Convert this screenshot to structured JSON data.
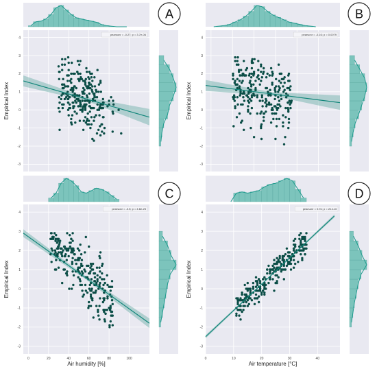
{
  "colors": {
    "panel_bg": "#e9e9f1",
    "grid": "#ffffff",
    "scatter": "#0b4d46",
    "line": "#11867a",
    "ci_band": "#7fb8b2",
    "hist_bar": "#7cc4bc",
    "hist_edge": "#5aa9a1",
    "kde": "#1d9a8d"
  },
  "chart_data": [
    {
      "type": "scatter",
      "panel_label": "A",
      "annotation": "pearsonr = -0.27; p = 3.7e-06",
      "xlabel": "",
      "ylabel": "Empirical Index",
      "xlim": [
        -5,
        120
      ],
      "ylim": [
        -3.4,
        4.4
      ],
      "yticks": [
        -3,
        -2,
        -1,
        0,
        1,
        2,
        3,
        4
      ],
      "xticks": [],
      "regression": {
        "x": [
          -5,
          120
        ],
        "y": [
          1.6,
          -0.4
        ]
      },
      "ci_halfwidth": [
        0.3,
        0.1,
        0.45
      ],
      "top_hist": {
        "bins": [
          0,
          5,
          10,
          15,
          20,
          25,
          30,
          35,
          40,
          45,
          50,
          55,
          60,
          65,
          70,
          75,
          80,
          85,
          90,
          95,
          100
        ],
        "counts": [
          2,
          9,
          10,
          14,
          22,
          34,
          38,
          30,
          22,
          16,
          14,
          12,
          10,
          8,
          4,
          2,
          1,
          0,
          0,
          0
        ]
      },
      "right_hist": {
        "bins": [
          -2,
          -1.5,
          -1,
          -0.5,
          0,
          0.5,
          1,
          1.5,
          2,
          2.5,
          3
        ],
        "counts": [
          4,
          6,
          10,
          18,
          22,
          30,
          36,
          30,
          22,
          10
        ]
      }
    },
    {
      "type": "scatter",
      "panel_label": "B",
      "annotation": "pearsonr = -0.16; p = 0.0079",
      "xlabel": "",
      "ylabel": "Empirical Index",
      "xlim": [
        -5,
        120
      ],
      "ylim": [
        -3.4,
        4.4
      ],
      "yticks": [
        -3,
        -2,
        -1,
        0,
        1,
        2,
        3,
        4
      ],
      "xticks": [],
      "regression": {
        "x": [
          -5,
          120
        ],
        "y": [
          1.35,
          0.4
        ]
      },
      "ci_halfwidth": [
        0.3,
        0.1,
        0.4
      ],
      "top_hist": {
        "bins": [
          0,
          5,
          10,
          15,
          20,
          25,
          30,
          35,
          40,
          45,
          50,
          55,
          60,
          65,
          70,
          75,
          80,
          85,
          90,
          95,
          100
        ],
        "counts": [
          0,
          1,
          2,
          4,
          8,
          12,
          18,
          26,
          36,
          34,
          26,
          20,
          16,
          12,
          8,
          6,
          4,
          2,
          1,
          0
        ]
      },
      "right_hist": {
        "bins": [
          -2,
          -1.5,
          -1,
          -0.5,
          0,
          0.5,
          1,
          1.5,
          2,
          2.5,
          3
        ],
        "counts": [
          4,
          7,
          11,
          18,
          24,
          30,
          34,
          30,
          20,
          10
        ]
      }
    },
    {
      "type": "scatter",
      "panel_label": "C",
      "annotation": "pearsonr = -0.5; p = 4.6e-25",
      "xlabel": "Air humidity [%]",
      "ylabel": "Empirical Index",
      "xlim": [
        -5,
        120
      ],
      "ylim": [
        -3.4,
        4.4
      ],
      "yticks": [
        -3,
        -2,
        -1,
        0,
        1,
        2,
        3,
        4
      ],
      "xticks": [
        0,
        20,
        40,
        60,
        80,
        100
      ],
      "regression": {
        "x": [
          -5,
          120
        ],
        "y": [
          2.9,
          -1.8
        ]
      },
      "ci_halfwidth": [
        0.2,
        0.08,
        0.25
      ],
      "top_hist": {
        "bins": [
          20,
          25,
          30,
          35,
          40,
          45,
          50,
          55,
          60,
          65,
          70,
          75,
          80,
          85,
          90
        ],
        "counts": [
          6,
          14,
          30,
          38,
          34,
          26,
          16,
          14,
          18,
          22,
          20,
          16,
          10,
          4
        ]
      },
      "right_hist": {
        "bins": [
          -2,
          -1.5,
          -1,
          -0.5,
          0,
          0.5,
          1,
          1.5,
          2,
          2.5,
          3
        ],
        "counts": [
          4,
          8,
          12,
          16,
          20,
          26,
          40,
          28,
          20,
          8
        ]
      }
    },
    {
      "type": "scatter",
      "panel_label": "D",
      "annotation": "pearsonr = 0.91; p = 2e-113",
      "xlabel": "Air temperature [°C]",
      "ylabel": "Empirical Index",
      "xlim": [
        0,
        48
      ],
      "ylim": [
        -3.4,
        4.4
      ],
      "yticks": [
        -3,
        -2,
        -1,
        0,
        1,
        2,
        3,
        4
      ],
      "xticks": [
        0,
        10,
        20,
        30,
        40
      ],
      "regression": {
        "x": [
          0,
          46
        ],
        "y": [
          -2.5,
          3.8
        ]
      },
      "ci_halfwidth": [
        0.08,
        0.03,
        0.08
      ],
      "top_hist": {
        "bins": [
          8,
          10,
          12,
          14,
          16,
          18,
          20,
          22,
          24,
          26,
          28,
          30,
          32,
          34,
          36
        ],
        "counts": [
          0,
          14,
          16,
          14,
          16,
          18,
          24,
          28,
          30,
          34,
          38,
          34,
          20,
          6
        ]
      },
      "right_hist": {
        "bins": [
          -2,
          -1.5,
          -1,
          -0.5,
          0,
          0.5,
          1,
          1.5,
          2,
          2.5,
          3
        ],
        "counts": [
          4,
          7,
          10,
          14,
          18,
          24,
          36,
          26,
          18,
          8
        ]
      }
    }
  ]
}
